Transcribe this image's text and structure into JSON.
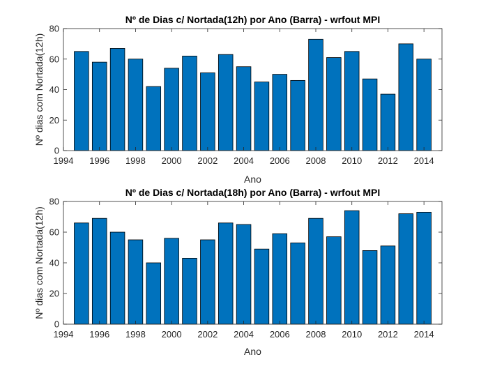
{
  "chart_data": [
    {
      "type": "bar",
      "title": "Nº de Dias c/ Nortada(12h) por Ano (Barra) - wrfout MPI",
      "xlabel": "Ano",
      "ylabel": "Nº dias com Nortada(12h)",
      "x": [
        1995,
        1996,
        1997,
        1998,
        1999,
        2000,
        2001,
        2002,
        2003,
        2004,
        2005,
        2006,
        2007,
        2008,
        2009,
        2010,
        2011,
        2012,
        2013,
        2014
      ],
      "values": [
        65,
        58,
        67,
        60,
        42,
        54,
        62,
        51,
        63,
        55,
        45,
        50,
        46,
        73,
        61,
        65,
        47,
        37,
        70,
        60
      ],
      "xlim": [
        1994,
        2015
      ],
      "ylim": [
        0,
        80
      ],
      "xticks": [
        1994,
        1996,
        1998,
        2000,
        2002,
        2004,
        2006,
        2008,
        2010,
        2012,
        2014
      ],
      "yticks": [
        0,
        20,
        40,
        60,
        80
      ],
      "grid": false,
      "color": "#0072BD"
    },
    {
      "type": "bar",
      "title": "Nº de Dias c/ Nortada(18h) por Ano (Barra) - wrfout MPI",
      "xlabel": "Ano",
      "ylabel": "Nº dias com Nortada(12h)",
      "x": [
        1995,
        1996,
        1997,
        1998,
        1999,
        2000,
        2001,
        2002,
        2003,
        2004,
        2005,
        2006,
        2007,
        2008,
        2009,
        2010,
        2011,
        2012,
        2013,
        2014
      ],
      "values": [
        66,
        69,
        60,
        55,
        40,
        56,
        43,
        55,
        66,
        65,
        49,
        59,
        53,
        69,
        57,
        74,
        48,
        51,
        72,
        73
      ],
      "xlim": [
        1994,
        2015
      ],
      "ylim": [
        0,
        80
      ],
      "xticks": [
        1994,
        1996,
        1998,
        2000,
        2002,
        2004,
        2006,
        2008,
        2010,
        2012,
        2014
      ],
      "yticks": [
        0,
        20,
        40,
        60,
        80
      ],
      "grid": false,
      "color": "#0072BD"
    }
  ]
}
